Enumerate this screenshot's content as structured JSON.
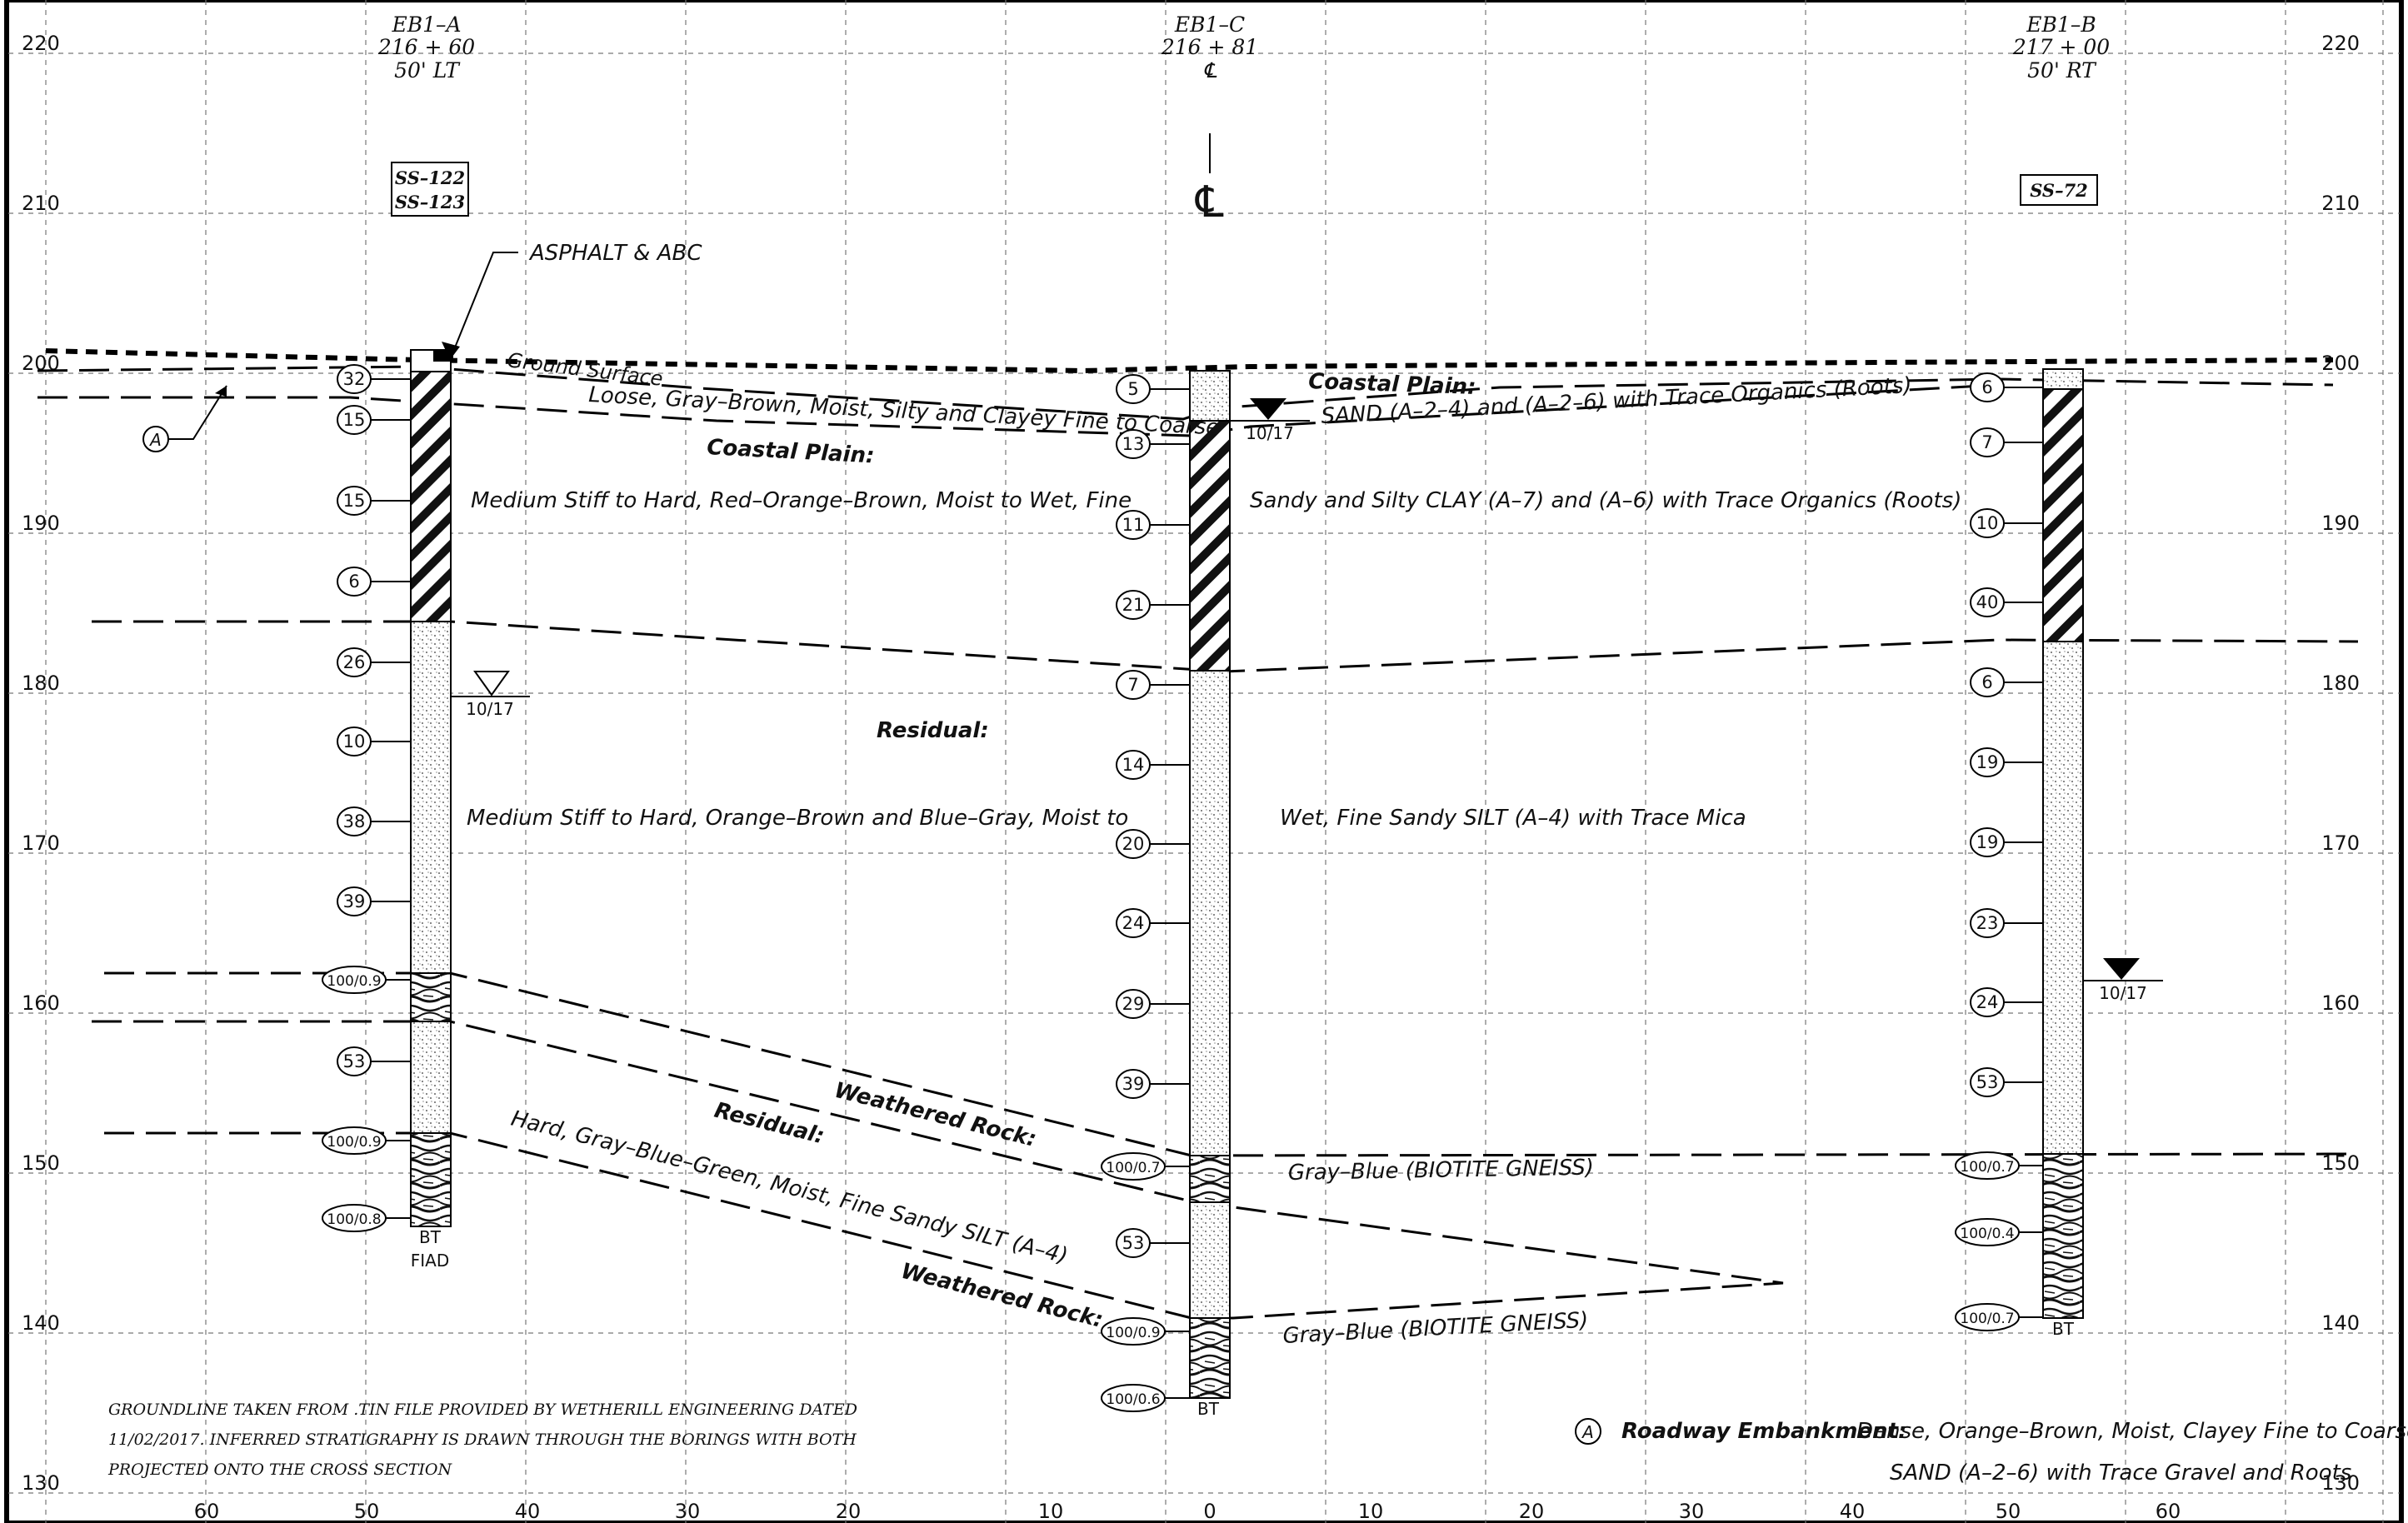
{
  "elevation_ticks": [
    "220",
    "210",
    "200",
    "190",
    "180",
    "170",
    "160",
    "150",
    "140",
    "130"
  ],
  "offset_ticks": [
    "60",
    "50",
    "40",
    "30",
    "20",
    "10",
    "0",
    "10",
    "20",
    "30",
    "40",
    "50",
    "60"
  ],
  "borings": [
    {
      "id": "EB1–A",
      "station": "216 + 60",
      "offset": "50' LT",
      "samples": [
        "SS–122",
        "SS–123"
      ],
      "n_values": [
        "32",
        "15",
        "15",
        "6",
        "26",
        "10",
        "38",
        "39",
        "100/0.9",
        "53",
        "100/0.9",
        "100/0.8"
      ],
      "bottom_labels": [
        "BT",
        "FIAD"
      ]
    },
    {
      "id": "EB1–C",
      "station": "216 + 81",
      "offset": "℄",
      "samples": [],
      "n_values": [
        "5",
        "13",
        "11",
        "21",
        "7",
        "14",
        "20",
        "24",
        "29",
        "39",
        "100/0.7",
        "53",
        "100/0.9",
        "100/0.6"
      ],
      "bottom_labels": [
        "BT"
      ]
    },
    {
      "id": "EB1–B",
      "station": "217 + 00",
      "offset": "50' RT",
      "samples": [
        "SS–72"
      ],
      "n_values": [
        "6",
        "7",
        "10",
        "40",
        "6",
        "19",
        "19",
        "23",
        "24",
        "53",
        "100/0.7",
        "100/0.4",
        "100/0.7"
      ],
      "bottom_labels": [
        "BT"
      ]
    }
  ],
  "centerline_symbol": "℄",
  "water_levels": [
    "10/17",
    "10/17",
    "10/17"
  ],
  "labels": {
    "asphalt": "ASPHALT & ABC",
    "ground_surface": "Ground Surface",
    "loose_sand": "Loose, Gray–Brown, Moist, Silty and Clayey Fine to Coarse",
    "coastal_plain": "Coastal Plain:",
    "sand_a2": "SAND (A–2–4) and (A–2–6) with Trace Organics (Roots)",
    "clay_left": "Medium Stiff to Hard, Red–Orange–Brown, Moist to Wet, Fine",
    "clay_right": "Sandy and  Silty CLAY (A–7) and (A–6) with Trace Organics (Roots)",
    "residual": "Residual:",
    "silt_left": "Medium Stiff to Hard, Orange–Brown and Blue–Gray, Moist to",
    "silt_right": "Wet, Fine Sandy SILT (A–4) with Trace Mica",
    "weathered_rock": "Weathered Rock:",
    "residual2": "Residual:",
    "hard_silt": "Hard, Gray–Blue–Green, Moist, Fine Sandy SILT (A–4)",
    "weathered_rock2": "Weathered Rock:",
    "gneiss1": "Gray–Blue (BIOTITE GNEISS)",
    "gneiss2": "Gray–Blue (BIOTITE GNEISS)",
    "a_marker": "A"
  },
  "notes": [
    "GROUNDLINE TAKEN FROM .TIN FILE PROVIDED BY WETHERILL ENGINEERING DATED",
    "11/02/2017. INFERRED STRATIGRAPHY IS DRAWN THROUGH THE BORINGS WITH BOTH",
    "PROJECTED ONTO THE CROSS SECTION"
  ],
  "legend": {
    "marker": "A",
    "title": "Roadway Embankment:",
    "line1": "Dense, Orange–Brown, Moist, Clayey Fine to Coarse",
    "line2": "SAND (A–2–6) with Trace Gravel and Roots"
  }
}
